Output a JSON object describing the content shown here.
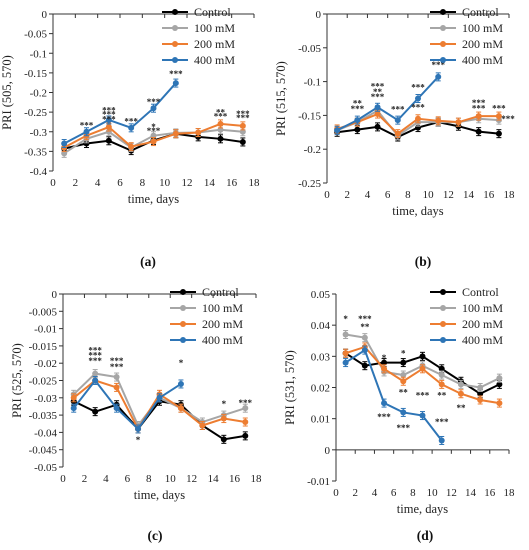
{
  "colors": {
    "Control": "#000000",
    "100 mM": "#a6a6a6",
    "200 mM": "#ed7d31",
    "400 mM": "#2e75b6"
  },
  "chart_data": [
    {
      "type": "line",
      "panel_label": "(a)",
      "xlabel": "time, days",
      "ylabel": "PRI (505, 570)",
      "xlim": [
        0,
        18
      ],
      "ylim": [
        -0.4,
        0
      ],
      "xticks": [
        "0",
        "2",
        "4",
        "6",
        "8",
        "10",
        "12",
        "14",
        "16",
        "18"
      ],
      "yticks": [
        "0",
        "-0.05",
        "-0.1",
        "-0.15",
        "-0.2",
        "-0.25",
        "-0.3",
        "-0.35",
        "-0.4"
      ],
      "legend_position": "top-right",
      "series": [
        {
          "name": "Control",
          "x": [
            1,
            3,
            5,
            7,
            9,
            11,
            13,
            15,
            17
          ],
          "y": [
            -0.343,
            -0.33,
            -0.323,
            -0.348,
            -0.322,
            -0.305,
            -0.313,
            -0.318,
            -0.326
          ]
        },
        {
          "name": "100 mM",
          "x": [
            1,
            3,
            5,
            7,
            9,
            11,
            13,
            15,
            17
          ],
          "y": [
            -0.355,
            -0.318,
            -0.3,
            -0.34,
            -0.31,
            -0.303,
            -0.302,
            -0.295,
            -0.3
          ]
        },
        {
          "name": "200 mM",
          "x": [
            1,
            3,
            5,
            7,
            9,
            11,
            13,
            15,
            17
          ],
          "y": [
            -0.34,
            -0.31,
            -0.288,
            -0.338,
            -0.325,
            -0.305,
            -0.302,
            -0.28,
            -0.285
          ]
        },
        {
          "name": "400 mM",
          "x": [
            1,
            3,
            5,
            7,
            9,
            11
          ],
          "y": [
            -0.33,
            -0.3,
            -0.27,
            -0.29,
            -0.24,
            -0.176
          ]
        }
      ],
      "annotations": [
        {
          "x": 3,
          "y": -0.292,
          "text": "***",
          "series": "400 mM"
        },
        {
          "x": 5,
          "y": -0.264,
          "text": "***",
          "series": "100 mM"
        },
        {
          "x": 5,
          "y": -0.276,
          "text": "***",
          "series": "200 mM"
        },
        {
          "x": 5,
          "y": -0.254,
          "text": "***",
          "series": "400 mM"
        },
        {
          "x": 7,
          "y": -0.282,
          "text": "***",
          "series": "400 mM"
        },
        {
          "x": 9,
          "y": -0.296,
          "text": "*",
          "series": "100 mM"
        },
        {
          "x": 9,
          "y": -0.306,
          "text": "***",
          "series": "200 mM"
        },
        {
          "x": 9,
          "y": -0.232,
          "text": "***",
          "series": "400 mM"
        },
        {
          "x": 11,
          "y": -0.16,
          "text": "***",
          "series": "400 mM"
        },
        {
          "x": 15,
          "y": -0.258,
          "text": "**",
          "series": "100 mM"
        },
        {
          "x": 15,
          "y": -0.269,
          "text": "***",
          "series": "200 mM"
        },
        {
          "x": 17,
          "y": -0.262,
          "text": "***",
          "series": "100 mM"
        },
        {
          "x": 17,
          "y": -0.273,
          "text": "***",
          "series": "200 mM"
        }
      ]
    },
    {
      "type": "line",
      "panel_label": "(b)",
      "xlabel": "time, days",
      "ylabel": "PRI (515, 570)",
      "xlim": [
        0,
        18
      ],
      "ylim": [
        -0.25,
        0
      ],
      "xticks": [
        "0",
        "2",
        "4",
        "6",
        "8",
        "10",
        "12",
        "14",
        "16",
        "18"
      ],
      "yticks": [
        "0",
        "-0.05",
        "-0.1",
        "-0.15",
        "-0.2",
        "-0.25"
      ],
      "legend_position": "top-right",
      "series": [
        {
          "name": "Control",
          "x": [
            1,
            3,
            5,
            7,
            9,
            11,
            13,
            15,
            17
          ],
          "y": [
            -0.175,
            -0.171,
            -0.167,
            -0.182,
            -0.168,
            -0.16,
            -0.166,
            -0.174,
            -0.177
          ]
        },
        {
          "name": "100 mM",
          "x": [
            1,
            3,
            5,
            7,
            9,
            11,
            13,
            15,
            17
          ],
          "y": [
            -0.172,
            -0.16,
            -0.143,
            -0.18,
            -0.16,
            -0.16,
            -0.16,
            -0.155,
            -0.157
          ]
        },
        {
          "name": "200 mM",
          "x": [
            1,
            3,
            5,
            7,
            9,
            11,
            13,
            15,
            17
          ],
          "y": [
            -0.17,
            -0.16,
            -0.148,
            -0.177,
            -0.155,
            -0.158,
            -0.16,
            -0.151,
            -0.151
          ]
        },
        {
          "name": "400 mM",
          "x": [
            1,
            3,
            5,
            7,
            9,
            11
          ],
          "y": [
            -0.172,
            -0.157,
            -0.138,
            -0.157,
            -0.125,
            -0.093
          ]
        }
      ],
      "annotations": [
        {
          "x": 3,
          "y": -0.137,
          "text": "**",
          "series": "200 mM"
        },
        {
          "x": 3,
          "y": -0.145,
          "text": "***",
          "series": "400 mM"
        },
        {
          "x": 5,
          "y": -0.112,
          "text": "***",
          "series": "100 mM"
        },
        {
          "x": 5,
          "y": -0.12,
          "text": "**",
          "series": "200 mM"
        },
        {
          "x": 5,
          "y": -0.127,
          "text": "***",
          "series": "400 mM"
        },
        {
          "x": 7,
          "y": -0.146,
          "text": "***",
          "series": "400 mM"
        },
        {
          "x": 9,
          "y": -0.143,
          "text": "***",
          "series": "200 mM"
        },
        {
          "x": 9,
          "y": -0.113,
          "text": "***",
          "series": "400 mM"
        },
        {
          "x": 11,
          "y": -0.08,
          "text": "***",
          "series": "400 mM"
        },
        {
          "x": 15,
          "y": -0.136,
          "text": "***",
          "series": "100 mM"
        },
        {
          "x": 15,
          "y": -0.144,
          "text": "***",
          "series": "200 mM"
        },
        {
          "x": 17,
          "y": -0.144,
          "text": "***",
          "series": "200 mM"
        },
        {
          "x": 17.9,
          "y": -0.16,
          "text": "***",
          "series": "100 mM"
        }
      ]
    },
    {
      "type": "line",
      "panel_label": "(c)",
      "xlabel": "time, days",
      "ylabel": "PRI (525, 570)",
      "xlim": [
        0,
        18
      ],
      "ylim": [
        -0.05,
        0
      ],
      "xticks": [
        "0",
        "2",
        "4",
        "6",
        "8",
        "10",
        "12",
        "14",
        "16",
        "18"
      ],
      "yticks": [
        "0",
        "-0.005",
        "-0.01",
        "-0.015",
        "-0.02",
        "-0.025",
        "-0.03",
        "-0.035",
        "-0.04",
        "-0.045",
        "-0.05"
      ],
      "legend_position": "top-right",
      "series": [
        {
          "name": "Control",
          "x": [
            1,
            3,
            5,
            7,
            9,
            11,
            13,
            15,
            17
          ],
          "y": [
            -0.031,
            -0.034,
            -0.032,
            -0.039,
            -0.031,
            -0.032,
            -0.038,
            -0.042,
            -0.041
          ]
        },
        {
          "name": "100 mM",
          "x": [
            1,
            3,
            5,
            7,
            9,
            11,
            13,
            15,
            17
          ],
          "y": [
            -0.029,
            -0.023,
            -0.024,
            -0.038,
            -0.03,
            -0.033,
            -0.037,
            -0.035,
            -0.033
          ]
        },
        {
          "name": "200 mM",
          "x": [
            1,
            3,
            5,
            7,
            9,
            11,
            13,
            15,
            17
          ],
          "y": [
            -0.03,
            -0.025,
            -0.027,
            -0.039,
            -0.029,
            -0.033,
            -0.038,
            -0.036,
            -0.037
          ]
        },
        {
          "name": "400 mM",
          "x": [
            1,
            3,
            5,
            7,
            9,
            11
          ],
          "y": [
            -0.033,
            -0.025,
            -0.033,
            -0.039,
            -0.03,
            -0.026
          ]
        }
      ],
      "annotations": [
        {
          "x": 3,
          "y": -0.0172,
          "text": "***",
          "series": "100 mM"
        },
        {
          "x": 3,
          "y": -0.0187,
          "text": "***",
          "series": "200 mM"
        },
        {
          "x": 3,
          "y": -0.0202,
          "text": "***",
          "series": "400 mM"
        },
        {
          "x": 5,
          "y": -0.0203,
          "text": "***",
          "series": "100 mM"
        },
        {
          "x": 5,
          "y": -0.022,
          "text": "***",
          "series": "200 mM"
        },
        {
          "x": 7,
          "y": -0.043,
          "text": "*",
          "series": "400 mM"
        },
        {
          "x": 11,
          "y": -0.0208,
          "text": "*",
          "series": "400 mM"
        },
        {
          "x": 15,
          "y": -0.0327,
          "text": "*",
          "series": "100 mM"
        },
        {
          "x": 17,
          "y": -0.0323,
          "text": "***",
          "series": "100 mM"
        }
      ]
    },
    {
      "type": "line",
      "panel_label": "(d)",
      "xlabel": "time, days",
      "ylabel": "PRI (531, 570)",
      "xlim": [
        0,
        18
      ],
      "ylim": [
        -0.01,
        0.05
      ],
      "xticks": [
        "0",
        "2",
        "4",
        "6",
        "8",
        "10",
        "12",
        "14",
        "16",
        "18"
      ],
      "yticks": [
        "0.05",
        "0.04",
        "0.03",
        "0.02",
        "0.01",
        "0",
        "-0.01"
      ],
      "legend_position": "top-right",
      "series": [
        {
          "name": "Control",
          "x": [
            1,
            3,
            5,
            7,
            9,
            11,
            13,
            15,
            17
          ],
          "y": [
            0.031,
            0.027,
            0.028,
            0.028,
            0.03,
            0.026,
            0.022,
            0.018,
            0.021
          ]
        },
        {
          "name": "100 mM",
          "x": [
            1,
            3,
            5,
            7,
            9,
            11,
            13,
            15,
            17
          ],
          "y": [
            0.037,
            0.036,
            0.025,
            0.024,
            0.027,
            0.024,
            0.021,
            0.02,
            0.023
          ]
        },
        {
          "name": "200 mM",
          "x": [
            1,
            3,
            5,
            7,
            9,
            11,
            13,
            15,
            17
          ],
          "y": [
            0.031,
            0.033,
            0.026,
            0.022,
            0.026,
            0.021,
            0.018,
            0.016,
            0.015
          ]
        },
        {
          "name": "400 mM",
          "x": [
            1,
            3,
            5,
            7,
            9,
            11
          ],
          "y": [
            0.028,
            0.032,
            0.015,
            0.012,
            0.011,
            0.003
          ]
        }
      ],
      "annotations": [
        {
          "x": 1,
          "y": 0.041,
          "text": "*",
          "series": "100 mM"
        },
        {
          "x": 3,
          "y": 0.041,
          "text": "***",
          "series": "100 mM"
        },
        {
          "x": 3,
          "y": 0.0385,
          "text": "**",
          "series": "400 mM"
        },
        {
          "x": 5,
          "y": 0.0285,
          "text": "*",
          "series": "200 mM"
        },
        {
          "x": 5,
          "y": 0.0095,
          "text": "***",
          "series": "400 mM"
        },
        {
          "x": 7,
          "y": 0.03,
          "text": "*",
          "series": "100 mM"
        },
        {
          "x": 7,
          "y": 0.0175,
          "text": "**",
          "series": "200 mM"
        },
        {
          "x": 7,
          "y": 0.006,
          "text": "***",
          "series": "400 mM"
        },
        {
          "x": 9,
          "y": 0.0165,
          "text": "***",
          "series": "400 mM"
        },
        {
          "x": 11,
          "y": 0.0165,
          "text": "**",
          "series": "200 mM"
        },
        {
          "x": 11,
          "y": 0.008,
          "text": "***",
          "series": "400 mM"
        },
        {
          "x": 13,
          "y": 0.0125,
          "text": "**",
          "series": "200 mM"
        }
      ]
    }
  ]
}
